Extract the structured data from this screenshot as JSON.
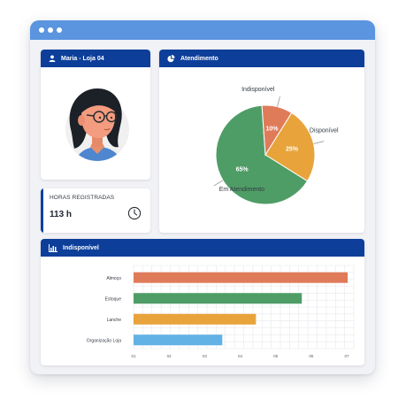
{
  "profile": {
    "title": "Maria - Loja 04",
    "user_icon": "user-icon"
  },
  "hours": {
    "label": "HORAS REGISTRADAS",
    "value": "113 h",
    "icon": "clock-icon"
  },
  "atendimento": {
    "title": "Atendimento",
    "icon": "pie-chart-icon"
  },
  "indisponivel": {
    "title": "Indisponível",
    "icon": "bar-chart-icon"
  },
  "colors": {
    "header": "#0d3f9a",
    "titlebar": "#5b95e0",
    "orange_red": "#e07b5a",
    "green": "#4f9d66",
    "amber": "#e8a33a",
    "light_blue": "#62b2e6"
  },
  "chart_data": [
    {
      "type": "pie",
      "slices": [
        {
          "label": "Disponível",
          "value": 25,
          "display": "25%",
          "color": "#e8a33a"
        },
        {
          "label": "Em Atendimento",
          "value": 65,
          "display": "65%",
          "color": "#4f9d66"
        },
        {
          "label": "Indisponível",
          "value": 10,
          "display": "10%",
          "color": "#e07b5a"
        }
      ]
    },
    {
      "type": "bar",
      "orientation": "horizontal",
      "categories": [
        "Almoço",
        "Estoque",
        "Lanche",
        "Organização Loja"
      ],
      "values": [
        0.78,
        0.63,
        0.48,
        0.37
      ],
      "colors": [
        "#e07b5a",
        "#4f9d66",
        "#e8a33a",
        "#62b2e6"
      ],
      "xlim": [
        0.08,
        0.8
      ],
      "x_ticks": [
        "01",
        "02",
        "03",
        "04",
        "05",
        "06",
        "07"
      ],
      "grid": true
    }
  ]
}
